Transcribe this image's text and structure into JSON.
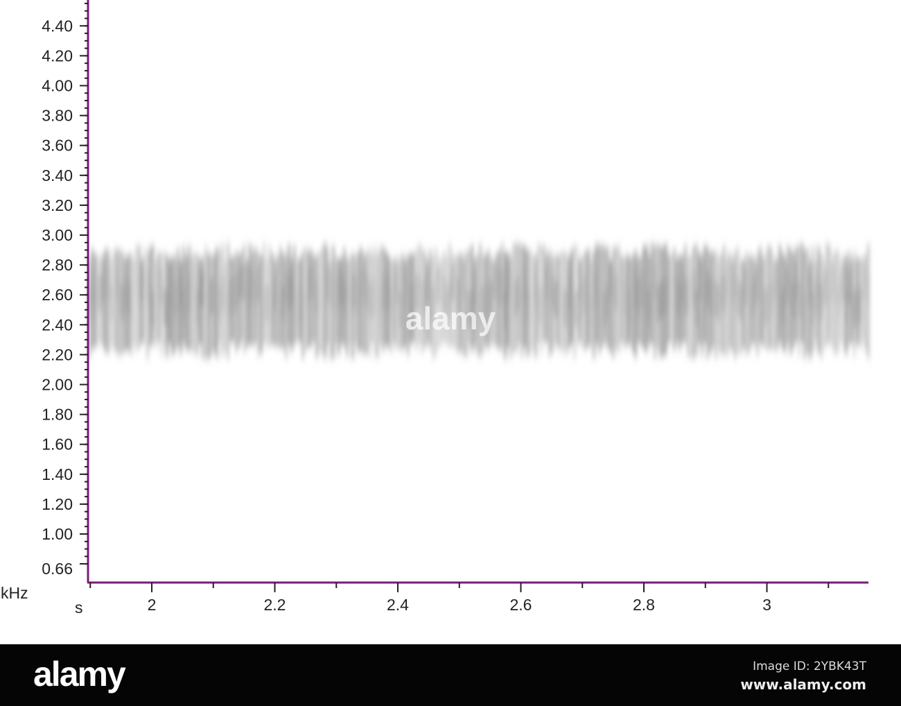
{
  "chart_data": {
    "type": "heatmap",
    "subtype": "spectrogram",
    "xlabel": "s",
    "ylabel": "kHz",
    "xlim": [
      1.896,
      3.165
    ],
    "ylim": [
      0.66,
      4.55
    ],
    "x_ticks": [
      "2",
      "2.2",
      "2.4",
      "2.6",
      "2.8",
      "3"
    ],
    "y_ticks": [
      "4.40",
      "4.20",
      "4.00",
      "3.80",
      "3.60",
      "3.40",
      "3.20",
      "3.00",
      "2.80",
      "2.60",
      "2.40",
      "2.20",
      "2.00",
      "1.80",
      "1.60",
      "1.40",
      "1.20",
      "1.00",
      "0.66"
    ],
    "y_min_label_color": "#3a3aa0",
    "axis_color": "#7a1a7a",
    "band": {
      "low_khz": 2.2,
      "high_khz": 2.9,
      "peak_khz": 2.6,
      "color": "#808080"
    },
    "watermark": "alamy"
  },
  "footer": {
    "logo": "alamy",
    "image_id": "Image ID: 2YBK43T",
    "site": "www.alamy.com"
  }
}
